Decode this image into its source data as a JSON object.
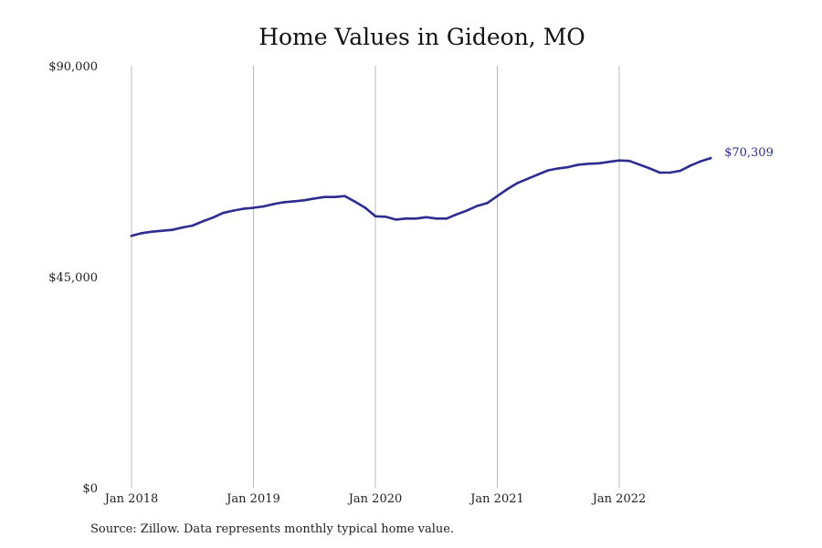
{
  "chart_data": {
    "type": "line",
    "title": "Home Values in Gideon, MO",
    "xlabel": "",
    "ylabel": "",
    "ylim": [
      0,
      90000
    ],
    "y_ticks": [
      "$0",
      "$45,000",
      "$90,000"
    ],
    "x_ticks": [
      "Jan 2018",
      "Jan 2019",
      "Jan 2020",
      "Jan 2021",
      "Jan 2022"
    ],
    "grid": "vertical lines at x tick labels",
    "end_label": "$70,309",
    "color": "#2e2d8f",
    "series": [
      {
        "x": [
          "2018-01",
          "2018-02",
          "2018-03",
          "2018-04",
          "2018-05",
          "2018-06",
          "2018-07",
          "2018-08",
          "2018-09",
          "2018-10",
          "2018-11",
          "2018-12",
          "2019-01",
          "2019-02",
          "2019-03",
          "2019-04",
          "2019-05",
          "2019-06",
          "2019-07",
          "2019-08",
          "2019-09",
          "2019-10",
          "2019-11",
          "2019-12",
          "2020-01",
          "2020-02",
          "2020-03",
          "2020-04",
          "2020-05",
          "2020-06",
          "2020-07",
          "2020-08",
          "2020-09",
          "2020-10",
          "2020-11",
          "2020-12",
          "2021-01",
          "2021-02",
          "2021-03",
          "2021-04",
          "2021-05",
          "2021-06",
          "2021-07",
          "2021-08",
          "2021-09",
          "2021-10",
          "2021-11",
          "2021-12",
          "2022-01",
          "2022-02",
          "2022-03",
          "2022-04",
          "2022-05",
          "2022-06",
          "2022-07",
          "2022-08",
          "2022-09",
          "2022-10"
        ],
        "values": [
          53700,
          54300,
          54600,
          54800,
          55000,
          55500,
          55900,
          56800,
          57600,
          58600,
          59100,
          59500,
          59700,
          60000,
          60500,
          60900,
          61100,
          61300,
          61700,
          62000,
          62000,
          62200,
          61000,
          59700,
          57900,
          57800,
          57200,
          57400,
          57400,
          57700,
          57400,
          57400,
          58300,
          59100,
          60100,
          60700,
          62200,
          63700,
          65000,
          65900,
          66800,
          67700,
          68100,
          68400,
          68900,
          69100,
          69200,
          69500,
          69800,
          69700,
          68900,
          68100,
          67200,
          67200,
          67600,
          68700,
          69600,
          70309
        ]
      }
    ]
  },
  "source": "Source: Zillow. Data represents monthly typical home value."
}
